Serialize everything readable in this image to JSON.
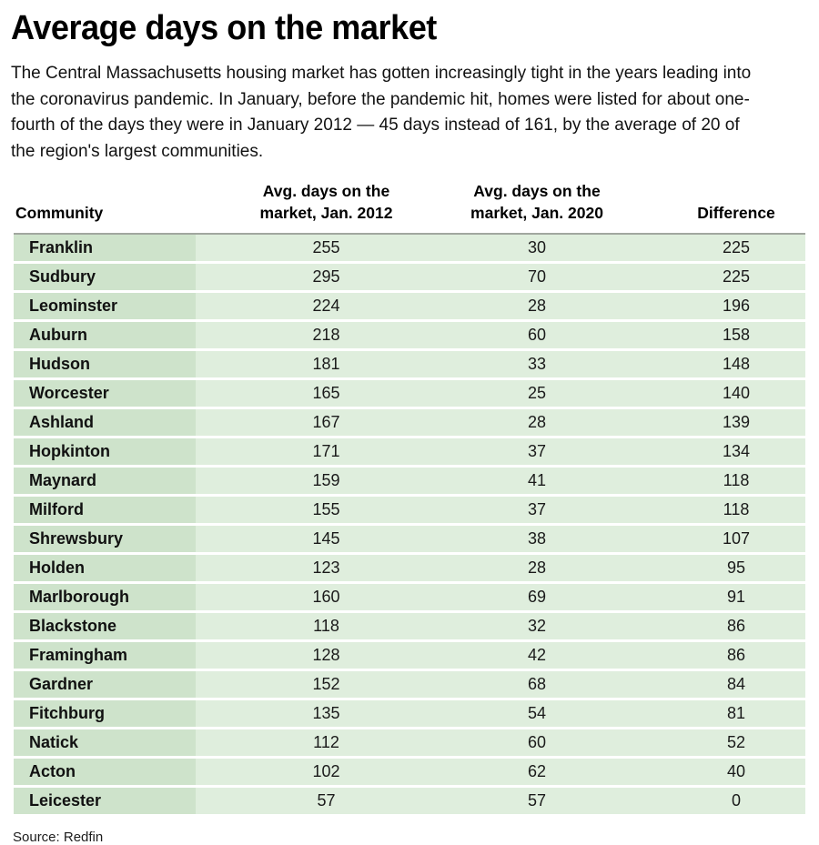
{
  "page": {
    "title": "Average days on the market",
    "description": "The Central Massachusetts housing market has gotten increasingly tight in the years leading into the coronavirus pandemic. In January, before the pandemic hit, homes were listed for about one-fourth of the days they were in January 2012 — 45 days instead of 161, by the average of 20 of the region's largest communities.",
    "source": "Source: Redfin"
  },
  "colors": {
    "community_cell_bg": "#cee3cb",
    "data_cell_bg": "#dfeedd",
    "header_rule": "#a1a79f",
    "text": "#141414"
  },
  "chart_data": {
    "type": "table",
    "title": "Average days on the market",
    "subtitle": "The Central Massachusetts housing market has gotten increasingly tight in the years leading into the coronavirus pandemic. In January, before the pandemic hit, homes were listed for about one-fourth of the days they were in January 2012 — 45 days instead of 161, by the average of 20 of the region's largest communities.",
    "columns": [
      "Community",
      "Avg. days on the\nmarket, Jan. 2012",
      "Avg. days on the\nmarket, Jan. 2020",
      "Difference"
    ],
    "rows": [
      [
        "Franklin",
        255,
        30,
        225
      ],
      [
        "Sudbury",
        295,
        70,
        225
      ],
      [
        "Leominster",
        224,
        28,
        196
      ],
      [
        "Auburn",
        218,
        60,
        158
      ],
      [
        "Hudson",
        181,
        33,
        148
      ],
      [
        "Worcester",
        165,
        25,
        140
      ],
      [
        "Ashland",
        167,
        28,
        139
      ],
      [
        "Hopkinton",
        171,
        37,
        134
      ],
      [
        "Maynard",
        159,
        41,
        118
      ],
      [
        "Milford",
        155,
        37,
        118
      ],
      [
        "Shrewsbury",
        145,
        38,
        107
      ],
      [
        "Holden",
        123,
        28,
        95
      ],
      [
        "Marlborough",
        160,
        69,
        91
      ],
      [
        "Blackstone",
        118,
        32,
        86
      ],
      [
        "Framingham",
        128,
        42,
        86
      ],
      [
        "Gardner",
        152,
        68,
        84
      ],
      [
        "Fitchburg",
        135,
        54,
        81
      ],
      [
        "Natick",
        112,
        60,
        52
      ],
      [
        "Acton",
        102,
        62,
        40
      ],
      [
        "Leicester",
        57,
        57,
        0
      ]
    ],
    "source": "Source: Redfin",
    "legend_position": "none",
    "grid": false
  }
}
